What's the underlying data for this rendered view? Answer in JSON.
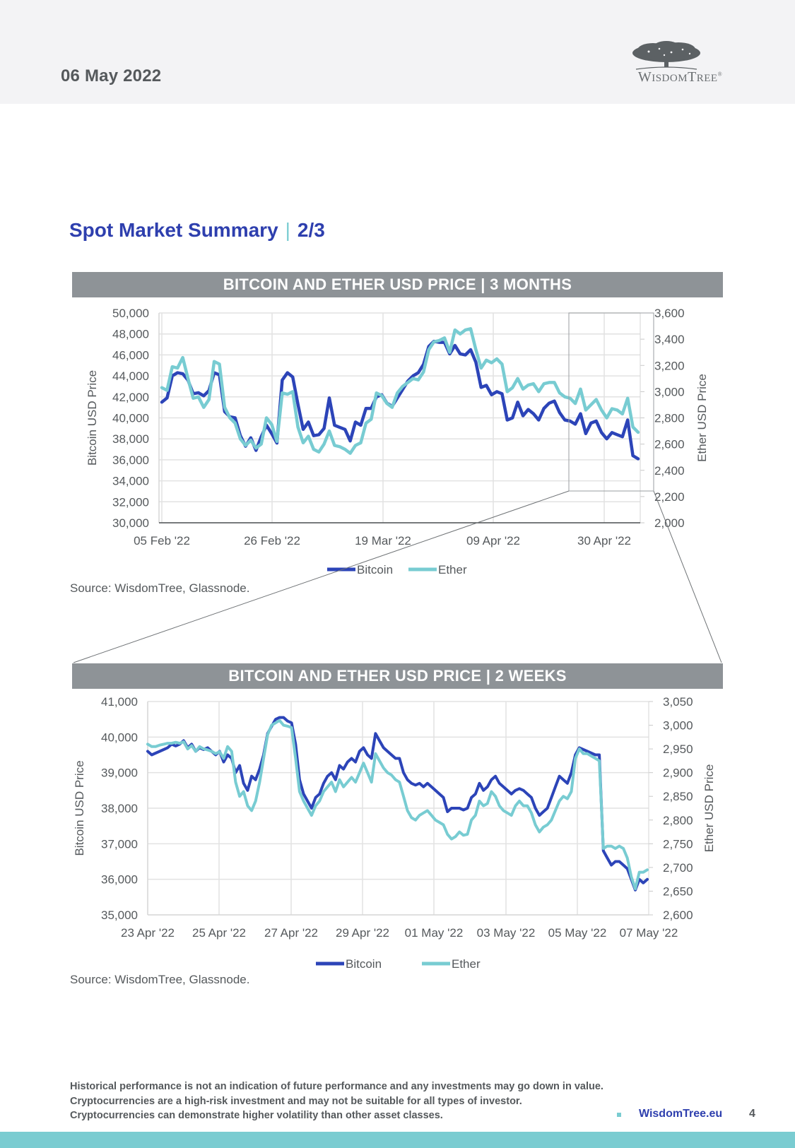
{
  "header": {
    "date": "06 May 2022",
    "logo_text_first": "W",
    "logo_text_rest": "ISDOM",
    "logo_text_t": "T",
    "logo_text_ree": "REE",
    "logo_reg": "®"
  },
  "section": {
    "title": "Spot Market Summary",
    "separator": "|",
    "page": "2/3"
  },
  "colors": {
    "bitcoin": "#2c44b8",
    "ether": "#78ccd2",
    "header_bg": "#8e9397",
    "accent": "#2e3fae",
    "band": "#7accd1"
  },
  "chart_data": [
    {
      "type": "line",
      "title": "BITCOIN AND ETHER USD PRICE  |  3 MONTHS",
      "xlabel": "",
      "ylabel": "Bitcoin USD Price",
      "y2label": "Ether USD Price",
      "ylim": [
        30000,
        50000
      ],
      "y2lim": [
        2000,
        3600
      ],
      "yticks": [
        "50,000",
        "48,000",
        "46,000",
        "44,000",
        "42,000",
        "40,000",
        "38,000",
        "36,000",
        "34,000",
        "32,000",
        "30,000"
      ],
      "y2ticks": [
        "3,600",
        "3,400",
        "3,200",
        "3,000",
        "2,800",
        "2,600",
        "2,400",
        "2,200",
        "2,000"
      ],
      "xticks": [
        "05 Feb '22",
        "26 Feb '22",
        "19 Mar '22",
        "09 Apr '22",
        "30 Apr '22"
      ],
      "x_start": "2022-02-05",
      "x_days": 91,
      "grid": true,
      "legend": "bottom-center",
      "zoom_box_days": [
        76,
        91
      ],
      "zoom_box_y": [
        50000,
        33000
      ],
      "series": [
        {
          "name": "Bitcoin",
          "axis": "left",
          "values": [
            41500,
            41900,
            44000,
            44300,
            44200,
            43600,
            42300,
            42400,
            42100,
            42600,
            44300,
            44100,
            40600,
            40100,
            40000,
            38300,
            37300,
            38100,
            36900,
            38200,
            39300,
            38500,
            37600,
            43600,
            44300,
            43900,
            41300,
            38900,
            39600,
            38300,
            38400,
            39000,
            41900,
            39300,
            39100,
            38900,
            37800,
            39600,
            39300,
            40900,
            40900,
            42000,
            42200,
            41400,
            41100,
            41900,
            42700,
            43500,
            44000,
            44300,
            45100,
            46800,
            47300,
            47200,
            47200,
            46100,
            46900,
            46100,
            46000,
            46500,
            45300,
            42900,
            43100,
            42200,
            42500,
            42300,
            39800,
            40000,
            41500,
            40200,
            40800,
            40400,
            39800,
            40900,
            41400,
            41600,
            40500,
            39800,
            39700,
            39400,
            40400,
            38500,
            39500,
            39700,
            38600,
            38000,
            38600,
            38400,
            38200,
            39800,
            36400,
            36100
          ]
        },
        {
          "name": "Ether",
          "axis": "right",
          "values": [
            3030,
            3010,
            3190,
            3180,
            3260,
            3100,
            2950,
            2960,
            2880,
            2940,
            3230,
            3210,
            2880,
            2800,
            2760,
            2640,
            2590,
            2630,
            2570,
            2600,
            2800,
            2750,
            2620,
            2990,
            2980,
            3000,
            2730,
            2610,
            2660,
            2560,
            2540,
            2600,
            2700,
            2590,
            2580,
            2560,
            2530,
            2590,
            2610,
            2760,
            2790,
            2990,
            2970,
            2910,
            2880,
            2990,
            3040,
            3070,
            3100,
            3090,
            3150,
            3320,
            3380,
            3390,
            3410,
            3300,
            3470,
            3440,
            3470,
            3480,
            3320,
            3180,
            3240,
            3220,
            3250,
            3210,
            3000,
            3030,
            3100,
            3020,
            3050,
            3060,
            3000,
            3060,
            3070,
            3070,
            2990,
            2960,
            2950,
            2910,
            3020,
            2860,
            2900,
            2940,
            2860,
            2800,
            2870,
            2860,
            2830,
            2950,
            2730,
            2690
          ]
        }
      ]
    },
    {
      "type": "line",
      "title": "BITCOIN AND ETHER USD PRICE  |  2 WEEKS",
      "xlabel": "",
      "ylabel": "Bitcoin USD Price",
      "y2label": "Ether USD Price",
      "ylim": [
        35000,
        41000
      ],
      "y2lim": [
        2600,
        3050
      ],
      "yticks": [
        "41,000",
        "40,000",
        "39,000",
        "38,000",
        "37,000",
        "36,000",
        "35,000"
      ],
      "y2ticks": [
        "3,050",
        "3,000",
        "2,950",
        "2,900",
        "2,850",
        "2,800",
        "2,750",
        "2,700",
        "2,650",
        "2,600"
      ],
      "xticks": [
        "23 Apr '22",
        "25 Apr '22",
        "27 Apr '22",
        "29 Apr '22",
        "01 May '22",
        "03 May '22",
        "05 May '22",
        "07 May '22"
      ],
      "x_start": "2022-04-23",
      "x_days": 14,
      "grid": true,
      "legend": "bottom-center",
      "series": [
        {
          "name": "Bitcoin",
          "axis": "left",
          "values": [
            39600,
            39500,
            39550,
            39600,
            39650,
            39700,
            39800,
            39750,
            39800,
            39900,
            39700,
            39800,
            39600,
            39700,
            39650,
            39700,
            39600,
            39500,
            39600,
            39300,
            39500,
            39400,
            39000,
            39200,
            38700,
            38500,
            38900,
            38800,
            39100,
            39500,
            40100,
            40300,
            40500,
            40550,
            40550,
            40450,
            40400,
            39800,
            38800,
            38400,
            38200,
            38000,
            38300,
            38400,
            38700,
            38900,
            39000,
            38800,
            39200,
            39100,
            39300,
            39400,
            39300,
            39600,
            39700,
            39500,
            39400,
            40100,
            39900,
            39700,
            39600,
            39500,
            39400,
            39400,
            39000,
            38800,
            38700,
            38650,
            38700,
            38600,
            38700,
            38600,
            38500,
            38400,
            38300,
            37900,
            38000,
            38000,
            38000,
            37950,
            38000,
            38300,
            38400,
            38700,
            38500,
            38600,
            38800,
            38900,
            38700,
            38600,
            38500,
            38400,
            38500,
            38550,
            38500,
            38400,
            38300,
            38000,
            37800,
            37900,
            38000,
            38300,
            38600,
            38900,
            38800,
            38700,
            39000,
            39500,
            39700,
            39650,
            39600,
            39550,
            39500,
            39500,
            36800,
            36600,
            36400,
            36500,
            36500,
            36400,
            36300,
            36000,
            35700,
            36000,
            35900,
            36000
          ]
        },
        {
          "name": "Ether",
          "axis": "right",
          "values": [
            2960,
            2955,
            2955,
            2958,
            2960,
            2962,
            2962,
            2964,
            2962,
            2965,
            2950,
            2957,
            2945,
            2955,
            2950,
            2948,
            2945,
            2940,
            2944,
            2930,
            2955,
            2945,
            2880,
            2850,
            2860,
            2830,
            2820,
            2840,
            2880,
            2930,
            2980,
            3000,
            3005,
            3010,
            3000,
            2998,
            2995,
            2930,
            2860,
            2840,
            2825,
            2810,
            2830,
            2840,
            2860,
            2870,
            2880,
            2860,
            2885,
            2870,
            2880,
            2890,
            2880,
            2900,
            2920,
            2900,
            2880,
            2940,
            2925,
            2910,
            2900,
            2895,
            2885,
            2880,
            2850,
            2820,
            2805,
            2800,
            2810,
            2815,
            2820,
            2810,
            2800,
            2795,
            2790,
            2770,
            2760,
            2765,
            2775,
            2768,
            2770,
            2800,
            2810,
            2840,
            2830,
            2835,
            2860,
            2850,
            2830,
            2820,
            2815,
            2810,
            2830,
            2840,
            2830,
            2830,
            2815,
            2790,
            2775,
            2785,
            2790,
            2800,
            2820,
            2840,
            2850,
            2845,
            2860,
            2930,
            2950,
            2940,
            2940,
            2935,
            2930,
            2925,
            2740,
            2745,
            2745,
            2740,
            2745,
            2740,
            2720,
            2680,
            2655,
            2690,
            2690,
            2695
          ]
        }
      ]
    }
  ],
  "charts_text": {
    "c1": {
      "header": "BITCOIN AND ETHER USD PRICE  |  3 MONTHS",
      "source": "Source: WisdomTree, Glassnode.",
      "legend_bitcoin": "Bitcoin",
      "legend_ether": "Ether"
    },
    "c2": {
      "header": "BITCOIN AND ETHER USD PRICE  |  2 WEEKS",
      "source": "Source: WisdomTree, Glassnode.",
      "legend_bitcoin": "Bitcoin",
      "legend_ether": "Ether"
    }
  },
  "footer": {
    "disclaimer_lines": [
      "Historical performance is not an indication of future performance and any investments may go down in value.",
      "Cryptocurrencies are a high-risk investment and may not be suitable for all types of investor.",
      "Cryptocurrencies can demonstrate higher volatility than other asset classes."
    ],
    "link": "WisdomTree.eu",
    "page_number": "4"
  }
}
